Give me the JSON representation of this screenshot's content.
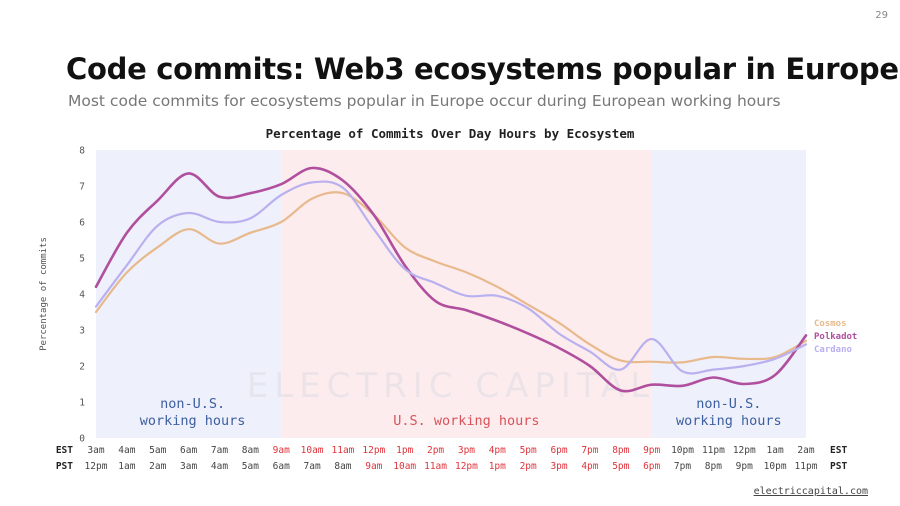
{
  "page_number": "29",
  "title": "Code commits: Web3 ecosystems popular in Europe",
  "subtitle": "Most code commits for ecosystems popular in Europe occur during European working hours",
  "footer_link": "electriccapital.com",
  "watermark": "ELECTRIC CAPITAL",
  "colors": {
    "cosmos": "#e8b98c",
    "polkadot": "#b04f9e",
    "cardano": "#b9b0ef",
    "non_us_band": "#eef0fb",
    "us_band": "#fdecee",
    "non_us_text": "#3c5fa0",
    "us_text": "#d9535a",
    "us_tick": "#e0333b"
  },
  "chart_data": {
    "type": "line",
    "title": "Percentage of Commits Over Day Hours by Ecosystem",
    "ylabel": "Percentage of commits",
    "ylim": [
      0,
      8
    ],
    "yticks": [
      0,
      1,
      2,
      3,
      4,
      5,
      6,
      7,
      8
    ],
    "x_est": [
      "3am",
      "4am",
      "5am",
      "6am",
      "7am",
      "8am",
      "9am",
      "10am",
      "11am",
      "12pm",
      "1pm",
      "2pm",
      "3pm",
      "4pm",
      "5pm",
      "6pm",
      "7pm",
      "8pm",
      "9pm",
      "10pm",
      "11pm",
      "12pm",
      "1am",
      "2am"
    ],
    "x_pst": [
      "12pm",
      "1am",
      "2am",
      "3am",
      "4am",
      "5am",
      "6am",
      "7am",
      "8am",
      "9am",
      "10am",
      "11am",
      "12pm",
      "1pm",
      "2pm",
      "3pm",
      "4pm",
      "5pm",
      "6pm",
      "7pm",
      "8pm",
      "9pm",
      "10pm",
      "11pm"
    ],
    "x_est_label": "EST",
    "x_pst_label": "PST",
    "us_hours_est": [
      6,
      18
    ],
    "us_hours_pst": [
      9,
      18
    ],
    "series": [
      {
        "name": "Cosmos",
        "values": [
          3.5,
          4.6,
          5.3,
          5.8,
          5.4,
          5.7,
          6.0,
          6.65,
          6.8,
          6.2,
          5.3,
          4.9,
          4.6,
          4.2,
          3.7,
          3.2,
          2.6,
          2.15,
          2.12,
          2.1,
          2.25,
          2.2,
          2.25,
          2.7
        ]
      },
      {
        "name": "Polkadot",
        "values": [
          4.2,
          5.7,
          6.6,
          7.35,
          6.7,
          6.8,
          7.05,
          7.5,
          7.15,
          6.2,
          4.8,
          3.8,
          3.55,
          3.25,
          2.9,
          2.5,
          2.0,
          1.32,
          1.48,
          1.45,
          1.68,
          1.5,
          1.75,
          2.85
        ]
      },
      {
        "name": "Cardano",
        "values": [
          3.65,
          4.8,
          5.9,
          6.25,
          6.0,
          6.1,
          6.75,
          7.1,
          6.95,
          5.8,
          4.7,
          4.3,
          3.95,
          3.95,
          3.6,
          2.9,
          2.4,
          1.9,
          2.75,
          1.85,
          1.9,
          2.0,
          2.2,
          2.6
        ]
      }
    ],
    "annotations": {
      "non_us_left": [
        "non-U.S.",
        "working hours"
      ],
      "us": "U.S. working hours",
      "non_us_right": [
        "non-U.S.",
        "working hours"
      ]
    },
    "legend_position": "right",
    "grid": false
  }
}
